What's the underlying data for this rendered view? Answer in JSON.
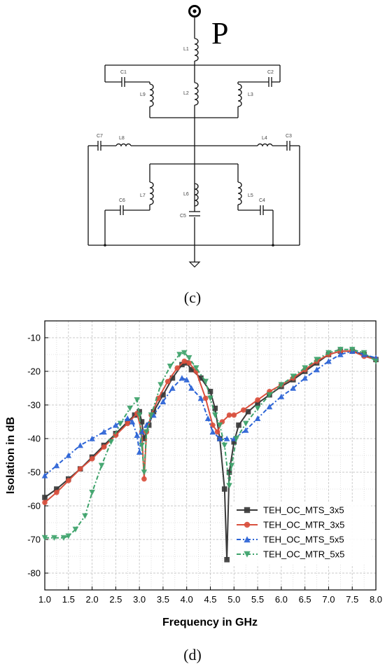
{
  "circuit": {
    "port_label": "P",
    "panel_label": "(c)",
    "components": {
      "L1": "L1",
      "L2": "L2",
      "L3": "L3",
      "L4": "L4",
      "L5": "L5",
      "L6": "L6",
      "L7": "L7",
      "L8": "L8",
      "L9": "L9",
      "C1": "C1",
      "C2": "C2",
      "C3": "C3",
      "C4": "C4",
      "C5": "C5",
      "C6": "C6",
      "C7": "C7"
    }
  },
  "panel_d_label": "(d)",
  "chart_data": {
    "type": "line",
    "xlabel": "Frequency in GHz",
    "ylabel": "Isolation in dB",
    "xlim": [
      1.0,
      8.0
    ],
    "ylim": [
      -85,
      -5
    ],
    "xticks": [
      "1.0",
      "1.5",
      "2.0",
      "2.5",
      "3.0",
      "3.5",
      "4.0",
      "4.5",
      "5.0",
      "5.5",
      "6.0",
      "6.5",
      "7.0",
      "7.5",
      "8.0"
    ],
    "yticks": [
      "-10",
      "-20",
      "-30",
      "-40",
      "-50",
      "-60",
      "-70",
      "-80"
    ],
    "grid": true,
    "legend_position": "bottom-right",
    "series": [
      {
        "name": "TEH_OC_MTS_3x5",
        "color": "#3a3a3a",
        "marker": "square",
        "dash": "",
        "x": [
          1.0,
          1.25,
          1.5,
          1.75,
          2.0,
          2.25,
          2.5,
          2.75,
          2.9,
          3.0,
          3.05,
          3.1,
          3.2,
          3.3,
          3.5,
          3.7,
          3.9,
          4.0,
          4.1,
          4.3,
          4.5,
          4.6,
          4.7,
          4.8,
          4.85,
          4.9,
          5.0,
          5.1,
          5.3,
          5.5,
          5.75,
          6.0,
          6.25,
          6.5,
          6.75,
          7.0,
          7.25,
          7.5,
          7.75,
          8.0
        ],
        "y": [
          -57.5,
          -55,
          -52,
          -49,
          -45.5,
          -42,
          -38.5,
          -35,
          -33,
          -32,
          -35,
          -40,
          -36,
          -32,
          -27,
          -22,
          -18,
          -17.5,
          -19.5,
          -22,
          -26,
          -31,
          -40,
          -55,
          -76,
          -50,
          -41,
          -36,
          -32,
          -29.5,
          -27,
          -24.5,
          -22.5,
          -20,
          -17.5,
          -15,
          -14,
          -14,
          -15,
          -16.5
        ]
      },
      {
        "name": "TEH_OC_MTR_3x5",
        "color": "#d94f3d",
        "marker": "circle",
        "dash": "",
        "x": [
          1.0,
          1.25,
          1.5,
          1.75,
          2.0,
          2.25,
          2.5,
          2.75,
          2.95,
          3.05,
          3.1,
          3.15,
          3.25,
          3.4,
          3.6,
          3.8,
          3.95,
          4.05,
          4.2,
          4.4,
          4.55,
          4.65,
          4.75,
          4.9,
          5.0,
          5.2,
          5.5,
          5.75,
          6.0,
          6.25,
          6.5,
          6.75,
          7.0,
          7.25,
          7.5,
          7.75,
          8.0
        ],
        "y": [
          -59,
          -56,
          -52.5,
          -49,
          -46,
          -42.5,
          -39,
          -35.5,
          -32.5,
          -38,
          -52,
          -38,
          -33,
          -28,
          -23,
          -19,
          -17,
          -17.5,
          -20,
          -28,
          -36,
          -38,
          -35,
          -33,
          -33,
          -31.5,
          -28.5,
          -26,
          -24,
          -22,
          -19.5,
          -17,
          -15,
          -14,
          -14,
          -15.5,
          -16.5
        ]
      },
      {
        "name": "TEH_OC_MTS_5x5",
        "color": "#2b63d6",
        "marker": "triangle-up",
        "dash": "6,3,2,3",
        "x": [
          1.0,
          1.25,
          1.5,
          1.75,
          2.0,
          2.25,
          2.5,
          2.75,
          2.85,
          2.95,
          3.0,
          3.05,
          3.15,
          3.3,
          3.5,
          3.7,
          3.9,
          4.0,
          4.1,
          4.3,
          4.45,
          4.55,
          4.7,
          4.85,
          5.0,
          5.25,
          5.5,
          5.75,
          6.0,
          6.25,
          6.5,
          6.75,
          7.0,
          7.25,
          7.5,
          7.75,
          8.0
        ],
        "y": [
          -51,
          -48,
          -45,
          -42,
          -40,
          -38,
          -36,
          -34,
          -35,
          -39,
          -44,
          -38,
          -36,
          -33,
          -29,
          -25,
          -22,
          -22.5,
          -25,
          -28,
          -34,
          -38,
          -40,
          -40,
          -40,
          -37.5,
          -34,
          -30.5,
          -27.5,
          -25,
          -22,
          -19.5,
          -17,
          -15,
          -14,
          -15,
          -16
        ]
      },
      {
        "name": "TEH_OC_MTR_5x5",
        "color": "#3ea36b",
        "marker": "triangle-down",
        "dash": "6,3,2,3",
        "x": [
          1.0,
          1.2,
          1.4,
          1.5,
          1.65,
          1.85,
          2.0,
          2.2,
          2.4,
          2.6,
          2.8,
          2.95,
          3.0,
          3.05,
          3.1,
          3.15,
          3.25,
          3.45,
          3.65,
          3.85,
          3.95,
          4.05,
          4.2,
          4.4,
          4.5,
          4.6,
          4.7,
          4.8,
          4.9,
          4.95,
          5.05,
          5.25,
          5.5,
          5.75,
          6.0,
          6.25,
          6.5,
          6.75,
          7.0,
          7.25,
          7.5,
          7.75,
          8.0
        ],
        "y": [
          -69.5,
          -69.5,
          -69.5,
          -69,
          -67,
          -63,
          -56,
          -48,
          -41,
          -35.5,
          -31,
          -28.5,
          -33,
          -42,
          -50,
          -38,
          -33,
          -24,
          -18.5,
          -15,
          -14.5,
          -16,
          -19,
          -23,
          -28,
          -33,
          -36,
          -42,
          -54,
          -48,
          -40,
          -35.5,
          -31,
          -27,
          -24,
          -21.5,
          -19,
          -16.5,
          -14.5,
          -13.5,
          -13.5,
          -14.5,
          -17
        ]
      }
    ]
  }
}
